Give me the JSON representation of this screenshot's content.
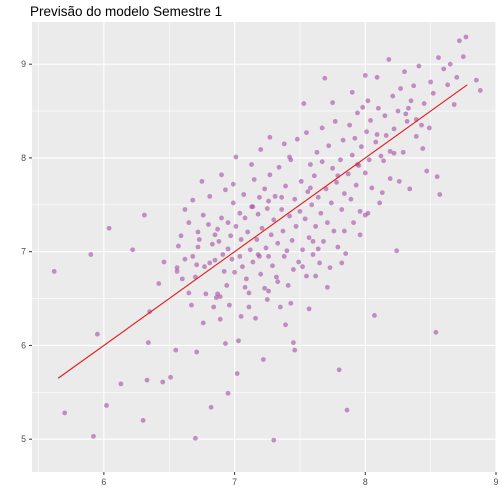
{
  "chart_data": {
    "type": "scatter",
    "title": "Previsão do modelo Semestre 1",
    "xlabel": "",
    "ylabel": "",
    "xlim": [
      5.45,
      9.0
    ],
    "ylim": [
      4.65,
      9.45
    ],
    "x_ticks": [
      6,
      7,
      8,
      9
    ],
    "y_ticks": [
      5,
      6,
      7,
      8,
      9
    ],
    "x_tick_labels": [
      "6",
      "7",
      "8",
      "9"
    ],
    "y_tick_labels": [
      "5",
      "6",
      "7",
      "8",
      "9"
    ],
    "grid": true,
    "background": "#ebebeb",
    "grid_color": "#ffffff",
    "point_color": "#a64ca6",
    "point_opacity": 0.6,
    "line_color": "#e41a1c",
    "fit_line": {
      "x": [
        5.65,
        8.78
      ],
      "y": [
        5.65,
        8.78
      ]
    },
    "points": [
      [
        5.62,
        6.79
      ],
      [
        5.7,
        5.28
      ],
      [
        5.9,
        6.97
      ],
      [
        5.92,
        5.03
      ],
      [
        5.95,
        6.12
      ],
      [
        6.02,
        5.36
      ],
      [
        6.04,
        7.25
      ],
      [
        6.13,
        5.59
      ],
      [
        6.22,
        7.02
      ],
      [
        6.3,
        5.2
      ],
      [
        6.31,
        7.39
      ],
      [
        6.33,
        5.63
      ],
      [
        6.34,
        6.03
      ],
      [
        6.35,
        6.36
      ],
      [
        6.42,
        6.66
      ],
      [
        6.45,
        5.61
      ],
      [
        6.51,
        5.66
      ],
      [
        6.55,
        5.95
      ],
      [
        6.56,
        6.83
      ],
      [
        6.56,
        6.79
      ],
      [
        6.57,
        7.06
      ],
      [
        6.59,
        7.17
      ],
      [
        6.6,
        6.71
      ],
      [
        6.62,
        6.92
      ],
      [
        6.65,
        7.31
      ],
      [
        6.65,
        6.56
      ],
      [
        6.67,
        6.43
      ],
      [
        6.68,
        7.55
      ],
      [
        6.68,
        6.95
      ],
      [
        6.7,
        5.01
      ],
      [
        6.7,
        6.73
      ],
      [
        6.71,
        6.86
      ],
      [
        6.72,
        7.21
      ],
      [
        6.72,
        7.05
      ],
      [
        6.73,
        7.13
      ],
      [
        6.75,
        7.75
      ],
      [
        6.76,
        7.39
      ],
      [
        6.76,
        6.24
      ],
      [
        6.77,
        6.84
      ],
      [
        6.78,
        6.55
      ],
      [
        6.8,
        7.29
      ],
      [
        6.81,
        6.88
      ],
      [
        6.82,
        5.34
      ],
      [
        6.83,
        7.08
      ],
      [
        6.84,
        6.41
      ],
      [
        6.85,
        7.18
      ],
      [
        6.85,
        6.91
      ],
      [
        6.86,
        6.51
      ],
      [
        6.87,
        7.24
      ],
      [
        6.88,
        7.11
      ],
      [
        6.89,
        6.52
      ],
      [
        6.9,
        7.36
      ],
      [
        6.91,
        6.97
      ],
      [
        6.92,
        6.79
      ],
      [
        6.93,
        7.66
      ],
      [
        6.94,
        6.64
      ],
      [
        6.95,
        7.31
      ],
      [
        6.95,
        7.03
      ],
      [
        6.96,
        6.43
      ],
      [
        6.97,
        7.17
      ],
      [
        6.98,
        6.92
      ],
      [
        6.99,
        7.52
      ],
      [
        7.0,
        6.78
      ],
      [
        7.01,
        7.27
      ],
      [
        7.02,
        5.7
      ],
      [
        7.03,
        6.05
      ],
      [
        7.04,
        7.41
      ],
      [
        7.04,
        6.95
      ],
      [
        7.05,
        7.13
      ],
      [
        7.06,
        6.84
      ],
      [
        7.07,
        7.61
      ],
      [
        7.08,
        7.36
      ],
      [
        7.09,
        6.71
      ],
      [
        7.1,
        7.21
      ],
      [
        7.11,
        6.56
      ],
      [
        7.12,
        7.02
      ],
      [
        7.13,
        7.48
      ],
      [
        7.14,
        6.89
      ],
      [
        7.15,
        7.77
      ],
      [
        7.16,
        6.29
      ],
      [
        7.17,
        7.13
      ],
      [
        7.18,
        7.4
      ],
      [
        7.18,
        6.97
      ],
      [
        7.19,
        7.58
      ],
      [
        7.2,
        6.76
      ],
      [
        7.21,
        7.25
      ],
      [
        7.22,
        5.85
      ],
      [
        7.23,
        7.67
      ],
      [
        7.24,
        7.04
      ],
      [
        7.25,
        7.46
      ],
      [
        7.26,
        6.58
      ],
      [
        7.26,
        6.95
      ],
      [
        7.27,
        7.82
      ],
      [
        7.28,
        7.18
      ],
      [
        7.29,
        6.85
      ],
      [
        7.3,
        4.99
      ],
      [
        7.3,
        7.34
      ],
      [
        7.31,
        7.59
      ],
      [
        7.32,
        6.73
      ],
      [
        7.33,
        7.09
      ],
      [
        7.34,
        7.9
      ],
      [
        7.35,
        6.41
      ],
      [
        7.36,
        7.45
      ],
      [
        7.37,
        7.22
      ],
      [
        7.38,
        6.95
      ],
      [
        7.39,
        7.7
      ],
      [
        7.4,
        7.01
      ],
      [
        7.41,
        6.64
      ],
      [
        7.42,
        7.38
      ],
      [
        7.43,
        7.98
      ],
      [
        7.44,
        7.12
      ],
      [
        7.45,
        6.81
      ],
      [
        7.46,
        7.56
      ],
      [
        7.47,
        7.27
      ],
      [
        7.48,
        8.2
      ],
      [
        7.49,
        6.89
      ],
      [
        7.5,
        7.43
      ],
      [
        7.51,
        7.75
      ],
      [
        7.52,
        7.02
      ],
      [
        7.53,
        8.58
      ],
      [
        7.54,
        7.35
      ],
      [
        7.55,
        6.74
      ],
      [
        7.56,
        7.64
      ],
      [
        7.57,
        7.15
      ],
      [
        7.58,
        7.93
      ],
      [
        7.59,
        7.5
      ],
      [
        7.6,
        6.97
      ],
      [
        7.61,
        7.81
      ],
      [
        7.62,
        7.27
      ],
      [
        7.63,
        8.06
      ],
      [
        7.64,
        7.58
      ],
      [
        7.65,
        6.88
      ],
      [
        7.66,
        7.41
      ],
      [
        7.67,
        7.96
      ],
      [
        7.68,
        7.11
      ],
      [
        7.69,
        8.85
      ],
      [
        7.7,
        7.67
      ],
      [
        7.71,
        7.31
      ],
      [
        7.72,
        8.13
      ],
      [
        7.73,
        6.83
      ],
      [
        7.74,
        7.52
      ],
      [
        7.75,
        7.89
      ],
      [
        7.76,
        7.22
      ],
      [
        7.77,
        8.39
      ],
      [
        7.78,
        7.74
      ],
      [
        7.79,
        7.05
      ],
      [
        7.8,
        5.74
      ],
      [
        7.81,
        7.98
      ],
      [
        7.82,
        7.45
      ],
      [
        7.83,
        8.19
      ],
      [
        7.84,
        7.62
      ],
      [
        7.85,
        6.98
      ],
      [
        7.86,
        5.31
      ],
      [
        7.87,
        7.83
      ],
      [
        7.88,
        8.35
      ],
      [
        7.89,
        7.56
      ],
      [
        7.9,
        8.03
      ],
      [
        7.91,
        7.31
      ],
      [
        7.92,
        8.21
      ],
      [
        7.93,
        7.71
      ],
      [
        7.94,
        8.48
      ],
      [
        7.95,
        7.92
      ],
      [
        7.96,
        7.43
      ],
      [
        7.97,
        8.12
      ],
      [
        7.98,
        8.54
      ],
      [
        8.0,
        7.84
      ],
      [
        8.01,
        8.28
      ],
      [
        8.02,
        8.61
      ],
      [
        8.03,
        7.98
      ],
      [
        8.04,
        8.4
      ],
      [
        8.05,
        7.68
      ],
      [
        8.07,
        6.32
      ],
      [
        8.08,
        8.17
      ],
      [
        8.09,
        8.86
      ],
      [
        8.1,
        8.53
      ],
      [
        8.12,
        8.02
      ],
      [
        8.13,
        7.63
      ],
      [
        8.15,
        8.45
      ],
      [
        8.16,
        8.24
      ],
      [
        8.18,
        9.05
      ],
      [
        8.19,
        7.78
      ],
      [
        8.21,
        8.66
      ],
      [
        8.22,
        8.31
      ],
      [
        8.24,
        7.01
      ],
      [
        8.25,
        8.5
      ],
      [
        8.27,
        8.74
      ],
      [
        8.29,
        8.06
      ],
      [
        8.3,
        8.92
      ],
      [
        8.32,
        8.39
      ],
      [
        8.34,
        7.67
      ],
      [
        8.35,
        8.61
      ],
      [
        8.37,
        8.77
      ],
      [
        8.39,
        8.23
      ],
      [
        8.41,
        8.98
      ],
      [
        8.43,
        8.35
      ],
      [
        8.45,
        8.58
      ],
      [
        8.47,
        7.86
      ],
      [
        8.5,
        8.81
      ],
      [
        8.52,
        8.69
      ],
      [
        8.54,
        6.14
      ],
      [
        8.55,
        7.8
      ],
      [
        8.56,
        9.07
      ],
      [
        8.57,
        7.61
      ],
      [
        8.6,
        8.95
      ],
      [
        8.63,
        8.78
      ],
      [
        8.65,
        9.0
      ],
      [
        8.68,
        8.57
      ],
      [
        8.7,
        8.86
      ],
      [
        8.72,
        9.25
      ],
      [
        8.75,
        9.08
      ],
      [
        8.77,
        9.29
      ],
      [
        8.85,
        8.83
      ],
      [
        8.88,
        8.72
      ],
      [
        7.11,
        6.41
      ],
      [
        6.93,
        6.02
      ],
      [
        7.45,
        6.03
      ],
      [
        6.87,
        6.55
      ],
      [
        7.33,
        6.68
      ],
      [
        7.52,
        6.84
      ],
      [
        7.25,
        6.49
      ],
      [
        7.64,
        7.03
      ],
      [
        7.08,
        6.62
      ],
      [
        7.39,
        6.22
      ],
      [
        7.57,
        6.39
      ],
      [
        6.95,
        5.49
      ],
      [
        7.19,
        6.95
      ],
      [
        7.46,
        5.95
      ],
      [
        7.71,
        6.62
      ],
      [
        7.26,
        7.54
      ],
      [
        7.13,
        7.93
      ],
      [
        7.01,
        8.01
      ],
      [
        6.9,
        7.82
      ],
      [
        7.2,
        8.09
      ],
      [
        7.38,
        8.15
      ],
      [
        7.55,
        8.27
      ],
      [
        7.67,
        8.32
      ],
      [
        7.75,
        8.59
      ],
      [
        7.9,
        8.7
      ],
      [
        8.0,
        8.88
      ],
      [
        7.27,
        8.22
      ],
      [
        7.42,
        8.01
      ],
      [
        7.6,
        7.11
      ],
      [
        7.84,
        7.22
      ],
      [
        7.96,
        7.18
      ],
      [
        8.02,
        7.41
      ],
      [
        8.14,
        7.97
      ],
      [
        8.22,
        8.05
      ],
      [
        8.39,
        8.41
      ],
      [
        8.49,
        8.32
      ],
      [
        8.31,
        8.47
      ],
      [
        8.44,
        8.1
      ],
      [
        6.46,
        6.89
      ],
      [
        6.62,
        7.45
      ],
      [
        6.81,
        7.59
      ],
      [
        6.99,
        7.72
      ],
      [
        7.14,
        7.48
      ],
      [
        7.36,
        7.58
      ],
      [
        7.58,
        7.68
      ],
      [
        7.79,
        7.81
      ],
      [
        7.94,
        7.93
      ],
      [
        8.09,
        8.25
      ],
      [
        8.19,
        8.07
      ],
      [
        8.33,
        8.53
      ],
      [
        6.71,
        5.93
      ],
      [
        6.89,
        6.28
      ],
      [
        7.05,
        6.31
      ],
      [
        7.23,
        6.61
      ],
      [
        7.43,
        6.45
      ],
      [
        7.62,
        6.74
      ],
      [
        7.82,
        6.88
      ],
      [
        8.0,
        7.39
      ],
      [
        8.11,
        7.52
      ],
      [
        8.26,
        7.75
      ]
    ]
  }
}
